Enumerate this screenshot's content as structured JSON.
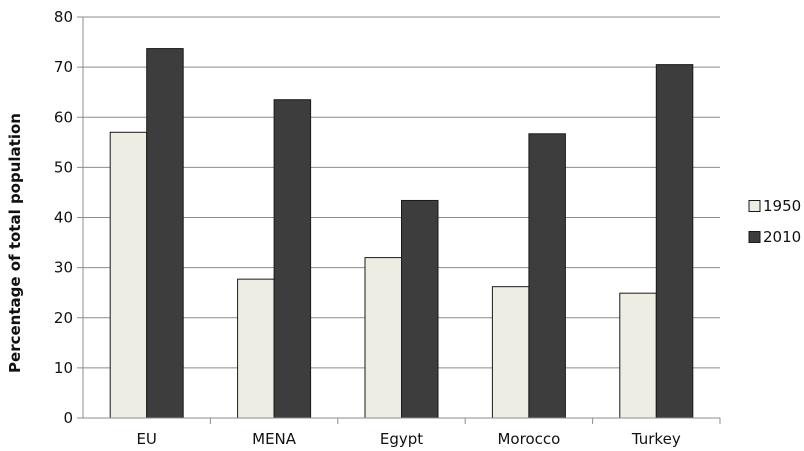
{
  "chart_data": {
    "type": "bar",
    "title": "",
    "xlabel": "",
    "ylabel": "Percentage of total population",
    "categories": [
      "EU",
      "MENA",
      "Egypt",
      "Morocco",
      "Turkey"
    ],
    "series": [
      {
        "name": "1950",
        "values": [
          57.0,
          27.7,
          32.0,
          26.2,
          24.9
        ],
        "color": "#eeede3"
      },
      {
        "name": "2010",
        "values": [
          73.7,
          63.5,
          43.4,
          56.7,
          70.5
        ],
        "color": "#3d3d3d"
      }
    ],
    "ylim": [
      0,
      80
    ],
    "yticks": [
      0,
      10,
      20,
      30,
      40,
      50,
      60,
      70,
      80
    ],
    "grid": true,
    "legend": "right"
  }
}
